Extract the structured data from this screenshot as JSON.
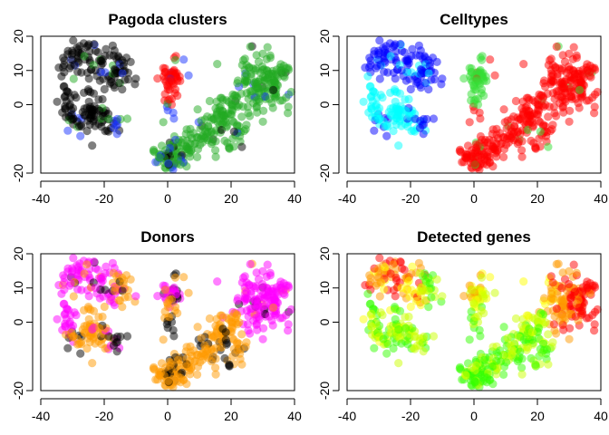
{
  "chart_data": [
    {
      "type": "scatter",
      "title": "Pagoda clusters",
      "xlabel": "",
      "ylabel": "",
      "xlim": [
        -40,
        40
      ],
      "ylim": [
        -20,
        20
      ],
      "xticks": [
        -40,
        -20,
        0,
        20,
        40
      ],
      "yticks": [
        20,
        10,
        0,
        -20
      ],
      "color_by": "cluster",
      "groups": [
        {
          "color": "#000000",
          "regions": [
            "upper-left island (x -35..-15, y -5..20)"
          ]
        },
        {
          "color": "#22aa22",
          "regions": [
            "lower-right arc (x 0..40, y -18..12)",
            "scattered in upper-left island"
          ]
        },
        {
          "color": "#ff0000",
          "regions": [
            "central column (x 0..8, y 0..12)"
          ]
        },
        {
          "color": "#1a33ff",
          "regions": [
            "scattered in upper-left island",
            "bottom of lower-right arc"
          ]
        }
      ]
    },
    {
      "type": "scatter",
      "title": "Celltypes",
      "xlabel": "",
      "ylabel": "",
      "xlim": [
        -40,
        40
      ],
      "ylim": [
        -20,
        20
      ],
      "xticks": [
        -40,
        -20,
        0,
        20,
        40
      ],
      "yticks": [
        20,
        10,
        0,
        -20
      ],
      "color_by": "celltype",
      "groups": [
        {
          "color": "#0000ff",
          "regions": [
            "top of upper-left island"
          ]
        },
        {
          "color": "#00ffff",
          "regions": [
            "left/bottom of upper-left island"
          ]
        },
        {
          "color": "#33dd33",
          "regions": [
            "central column"
          ]
        },
        {
          "color": "#ff0000",
          "regions": [
            "lower-right arc"
          ]
        }
      ]
    },
    {
      "type": "scatter",
      "title": "Donors",
      "xlabel": "",
      "ylabel": "",
      "xlim": [
        -40,
        40
      ],
      "ylim": [
        -20,
        20
      ],
      "xticks": [
        -40,
        -20,
        0,
        20,
        40
      ],
      "yticks": [
        20,
        10,
        0,
        -20
      ],
      "color_by": "donor",
      "groups": [
        {
          "color": "#ff00ff",
          "regions": [
            "upper-left island",
            "top of central column",
            "upper right of arc"
          ]
        },
        {
          "color": "#ff9900",
          "regions": [
            "right part of upper-left island",
            "bottom of arc",
            "central column"
          ]
        },
        {
          "color": "#000000",
          "regions": [
            "scattered"
          ]
        }
      ]
    },
    {
      "type": "scatter",
      "title": "Detected genes",
      "xlabel": "",
      "ylabel": "",
      "xlim": [
        -40,
        40
      ],
      "ylim": [
        -20,
        20
      ],
      "xticks": [
        -40,
        -20,
        0,
        20,
        40
      ],
      "yticks": [
        20,
        10,
        0,
        -20
      ],
      "color_by": "gene count (continuous)",
      "color_scale": [
        "#33ff00",
        "#ccff00",
        "#ffff00",
        "#ff9900",
        "#ff0000"
      ]
    }
  ]
}
